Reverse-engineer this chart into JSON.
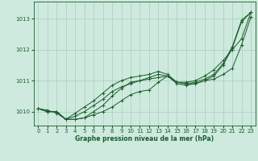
{
  "bg_color": "#ceeade",
  "grid_color": "#aaccbb",
  "line_color": "#1a5c2a",
  "xlabel": "Graphe pression niveau de la mer (hPa)",
  "xlabel_color": "#1a5c2a",
  "xlim": [
    -0.5,
    23.5
  ],
  "ylim": [
    1009.55,
    1013.55
  ],
  "yticks": [
    1010,
    1011,
    1012,
    1013
  ],
  "xticks": [
    0,
    1,
    2,
    3,
    4,
    5,
    6,
    7,
    8,
    9,
    10,
    11,
    12,
    13,
    14,
    15,
    16,
    17,
    18,
    19,
    20,
    21,
    22,
    23
  ],
  "series": [
    [
      1010.1,
      1010.0,
      1010.0,
      1009.75,
      1009.75,
      1009.8,
      1009.9,
      1010.0,
      1010.15,
      1010.35,
      1010.55,
      1010.65,
      1010.7,
      1010.95,
      1011.15,
      1010.95,
      1010.9,
      1010.9,
      1011.0,
      1011.05,
      1011.2,
      1011.4,
      1012.15,
      1013.05
    ],
    [
      1010.1,
      1010.0,
      1010.0,
      1009.75,
      1009.75,
      1009.8,
      1010.0,
      1010.2,
      1010.5,
      1010.75,
      1010.95,
      1011.0,
      1011.05,
      1011.1,
      1011.15,
      1010.9,
      1010.85,
      1010.9,
      1011.0,
      1011.15,
      1011.5,
      1012.05,
      1012.9,
      1013.2
    ],
    [
      1010.1,
      1010.0,
      1010.0,
      1009.75,
      1009.95,
      1010.15,
      1010.35,
      1010.6,
      1010.85,
      1011.0,
      1011.1,
      1011.15,
      1011.2,
      1011.3,
      1011.2,
      1010.95,
      1010.9,
      1010.95,
      1011.05,
      1011.2,
      1011.55,
      1012.1,
      1012.95,
      1013.2
    ],
    [
      1010.1,
      1010.05,
      1009.95,
      1009.75,
      1009.85,
      1010.0,
      1010.2,
      1010.4,
      1010.65,
      1010.8,
      1010.9,
      1011.0,
      1011.1,
      1011.2,
      1011.15,
      1010.95,
      1010.95,
      1011.0,
      1011.15,
      1011.35,
      1011.65,
      1012.0,
      1012.35,
      1013.2
    ]
  ]
}
